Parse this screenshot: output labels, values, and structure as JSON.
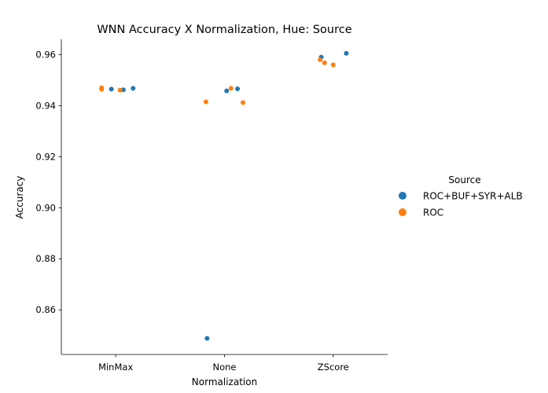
{
  "chart_data": {
    "type": "scatter",
    "title": "WNN Accuracy X Normalization, Hue: Source",
    "xlabel": "Normalization",
    "ylabel": "Accuracy",
    "categories": [
      "MinMax",
      "None",
      "ZScore"
    ],
    "ylim": [
      0.8425,
      0.966
    ],
    "yticks": [
      "0.86",
      "0.88",
      "0.90",
      "0.92",
      "0.94",
      "0.96"
    ],
    "ytick_values": [
      0.86,
      0.88,
      0.9,
      0.92,
      0.94,
      0.96
    ],
    "grid": false,
    "legend": {
      "title": "Source",
      "placement": "right"
    },
    "series": [
      {
        "name": "ROC+BUF+SYR+ALB",
        "color": "#1f77b4",
        "points": [
          {
            "category": "MinMax",
            "jitter": -0.04,
            "y": 0.9465
          },
          {
            "category": "MinMax",
            "jitter": 0.07,
            "y": 0.9462
          },
          {
            "category": "MinMax",
            "jitter": 0.16,
            "y": 0.9468
          },
          {
            "category": "None",
            "jitter": -0.16,
            "y": 0.8488
          },
          {
            "category": "None",
            "jitter": 0.02,
            "y": 0.9458
          },
          {
            "category": "None",
            "jitter": 0.12,
            "y": 0.9466
          },
          {
            "category": "ZScore",
            "jitter": -0.11,
            "y": 0.959
          },
          {
            "category": "ZScore",
            "jitter": 0.12,
            "y": 0.9605
          }
        ]
      },
      {
        "name": "ROC",
        "color": "#ff7f0e",
        "points": [
          {
            "category": "MinMax",
            "jitter": -0.13,
            "y": 0.947
          },
          {
            "category": "MinMax",
            "jitter": -0.13,
            "y": 0.9464
          },
          {
            "category": "MinMax",
            "jitter": 0.04,
            "y": 0.9461
          },
          {
            "category": "None",
            "jitter": -0.17,
            "y": 0.9415
          },
          {
            "category": "None",
            "jitter": 0.06,
            "y": 0.9468
          },
          {
            "category": "None",
            "jitter": 0.17,
            "y": 0.9412
          },
          {
            "category": "ZScore",
            "jitter": -0.12,
            "y": 0.958
          },
          {
            "category": "ZScore",
            "jitter": -0.08,
            "y": 0.9568
          },
          {
            "category": "ZScore",
            "jitter": 0.0,
            "y": 0.956
          }
        ]
      }
    ]
  }
}
